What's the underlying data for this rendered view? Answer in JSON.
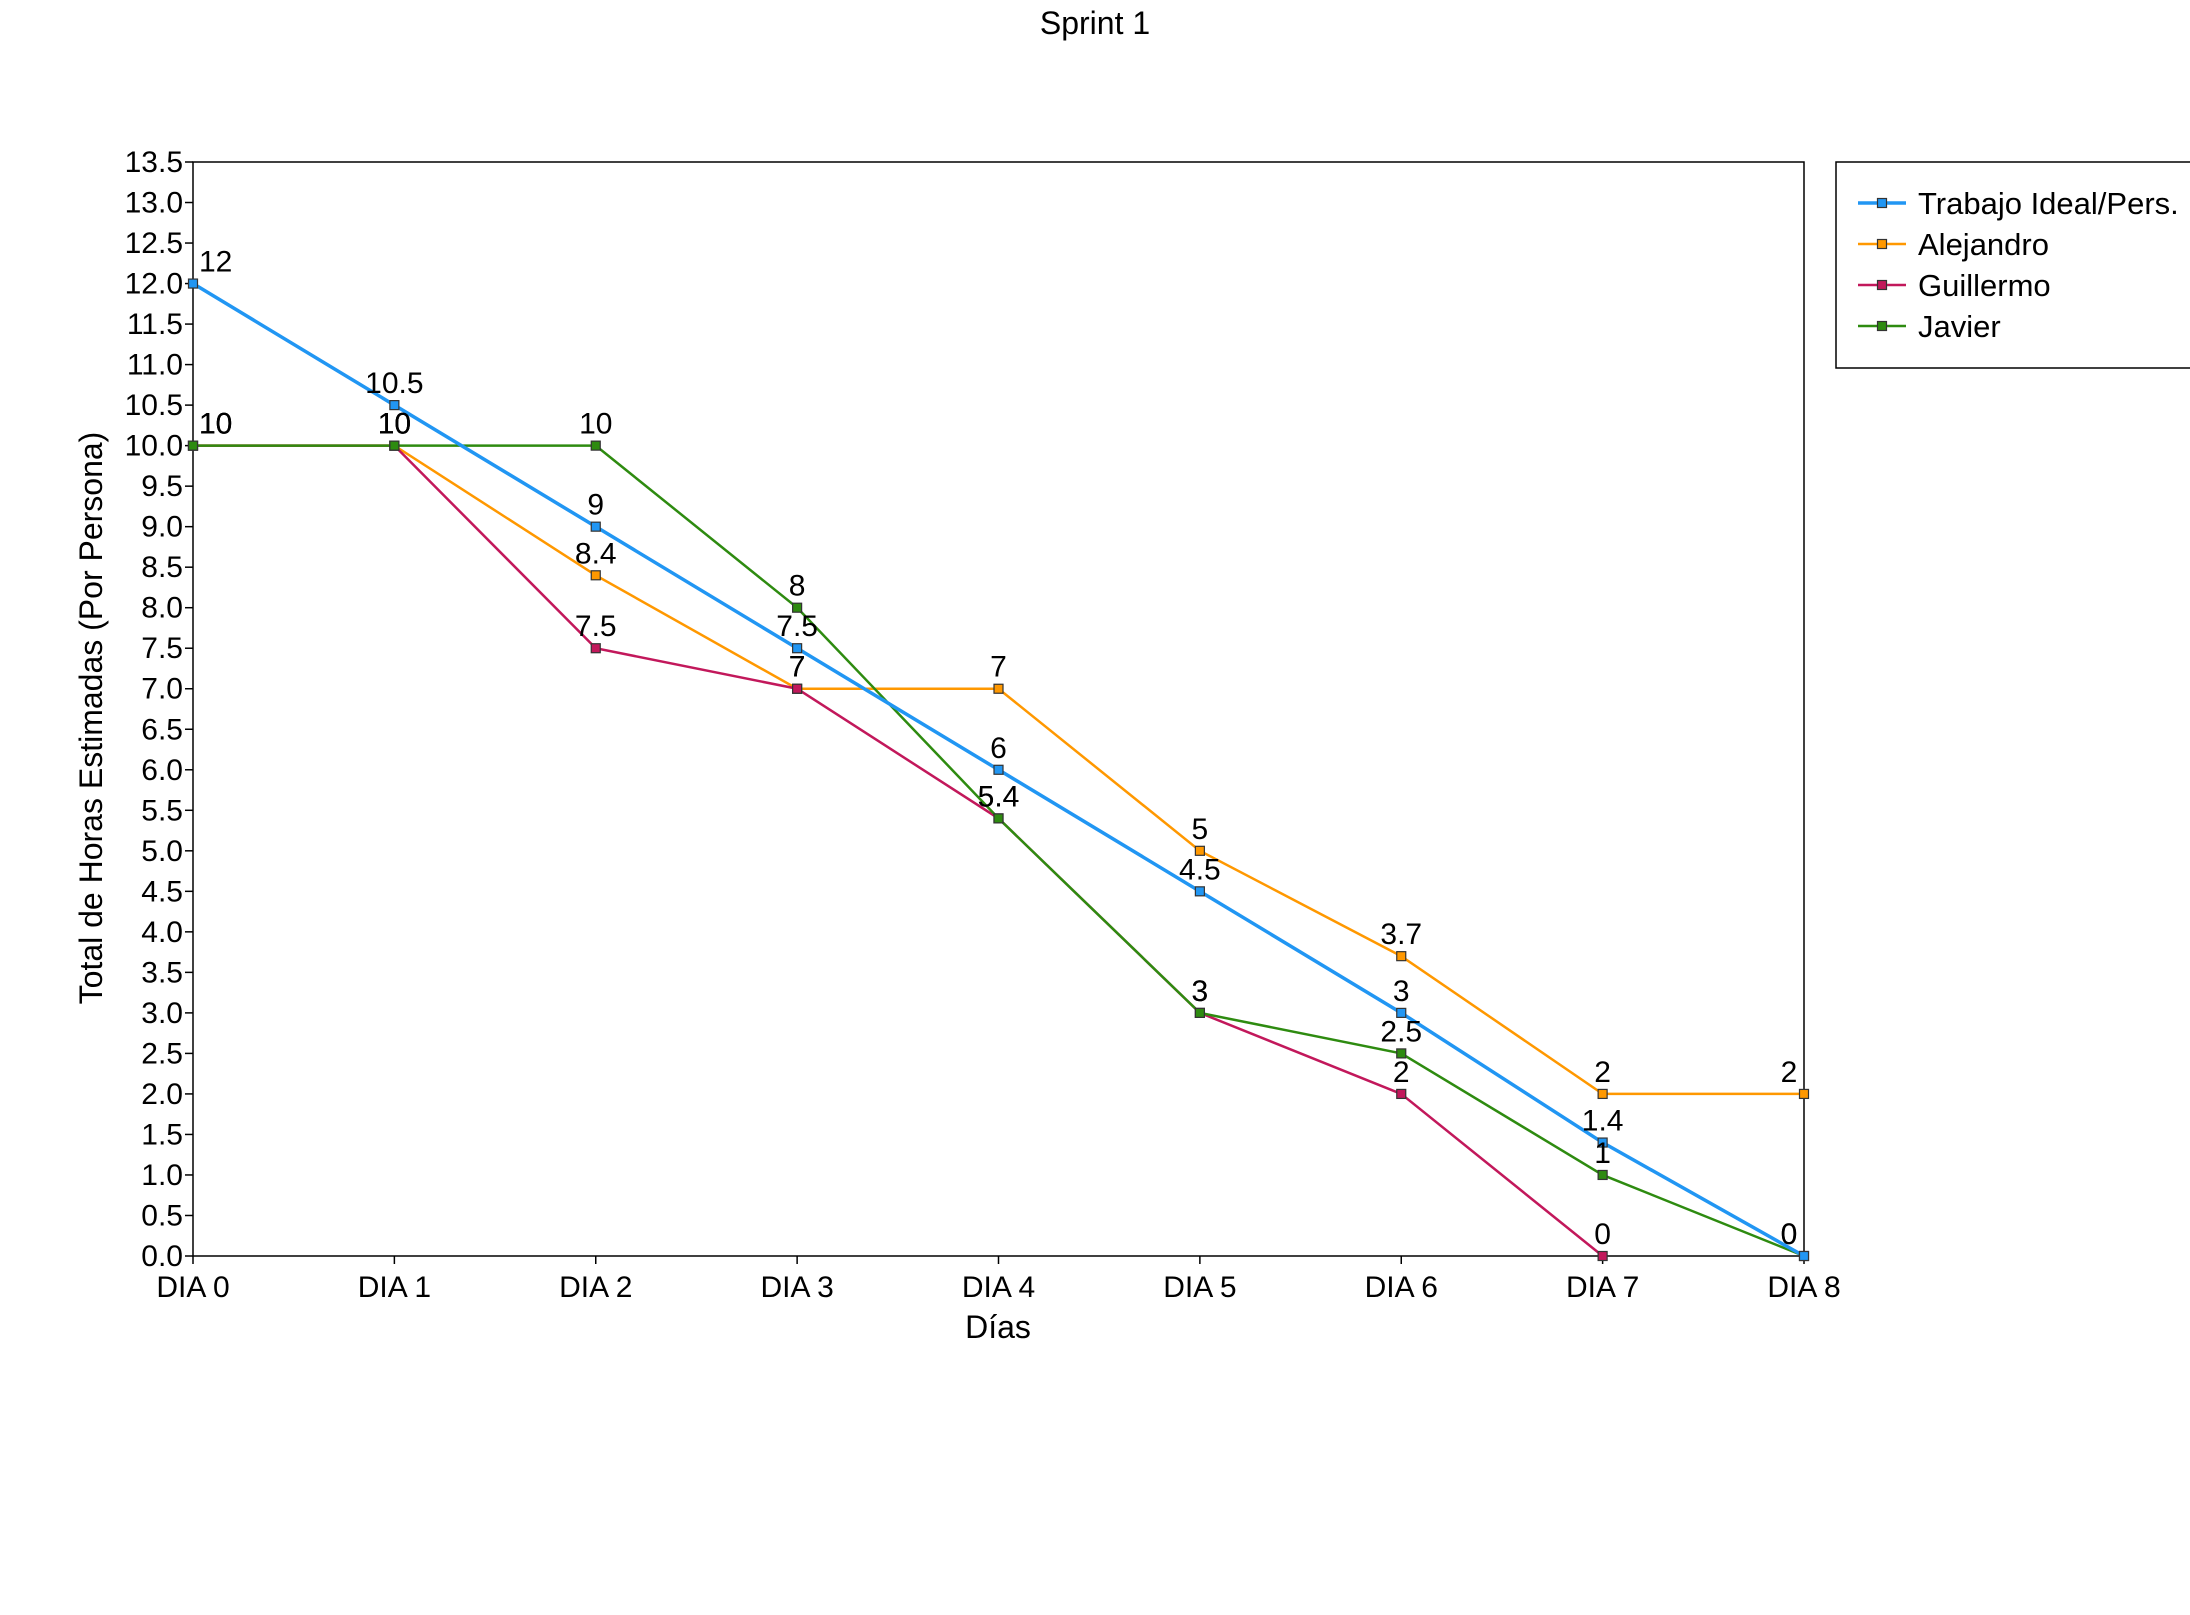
{
  "chart_data": {
    "type": "line",
    "title": "Sprint 1",
    "xlabel": "Días",
    "ylabel": "Total de Horas Estimadas (Por Persona)",
    "categories": [
      "DIA 0",
      "DIA 1",
      "DIA 2",
      "DIA 3",
      "DIA 4",
      "DIA 5",
      "DIA 6",
      "DIA 7",
      "DIA 8"
    ],
    "ylim": [
      0,
      13.5
    ],
    "yticks": [
      "0.0",
      "0.5",
      "1.0",
      "1.5",
      "2.0",
      "2.5",
      "3.0",
      "3.5",
      "4.0",
      "4.5",
      "5.0",
      "5.5",
      "6.0",
      "6.5",
      "7.0",
      "7.5",
      "8.0",
      "8.5",
      "9.0",
      "9.5",
      "10.0",
      "10.5",
      "11.0",
      "11.5",
      "12.0",
      "12.5",
      "13.0",
      "13.5"
    ],
    "grid": false,
    "legend_position": "right",
    "series": [
      {
        "name": "Trabajo Ideal/Pers.",
        "color": "#2196F3",
        "values": [
          12,
          10.5,
          9,
          7.5,
          6,
          4.5,
          3,
          1.4,
          0
        ],
        "labels": [
          "12",
          "10.5",
          "9",
          "7.5",
          "6",
          "4.5",
          "3",
          "1.4",
          "0"
        ]
      },
      {
        "name": "Alejandro",
        "color": "#FF9800",
        "values": [
          10,
          10,
          8.4,
          7,
          7,
          5,
          3.7,
          2,
          2
        ],
        "labels": [
          "10",
          "10",
          "8.4",
          "7",
          "7",
          "5",
          "3.7",
          "2",
          "2"
        ]
      },
      {
        "name": "Guillermo",
        "color": "#C2185B",
        "values": [
          10,
          10,
          7.5,
          7,
          5.4,
          3,
          2,
          0,
          null
        ],
        "labels": [
          "10",
          "10",
          "7.5",
          "7",
          "5.4",
          "3",
          "2",
          "0",
          null
        ]
      },
      {
        "name": "Javier",
        "color": "#2E8B10",
        "values": [
          10,
          10,
          10,
          8,
          5.4,
          3,
          2.5,
          1,
          0
        ],
        "labels": [
          "10",
          "10",
          "10",
          "8",
          "5.4",
          "3",
          "2.5",
          "1",
          "0"
        ]
      }
    ]
  }
}
